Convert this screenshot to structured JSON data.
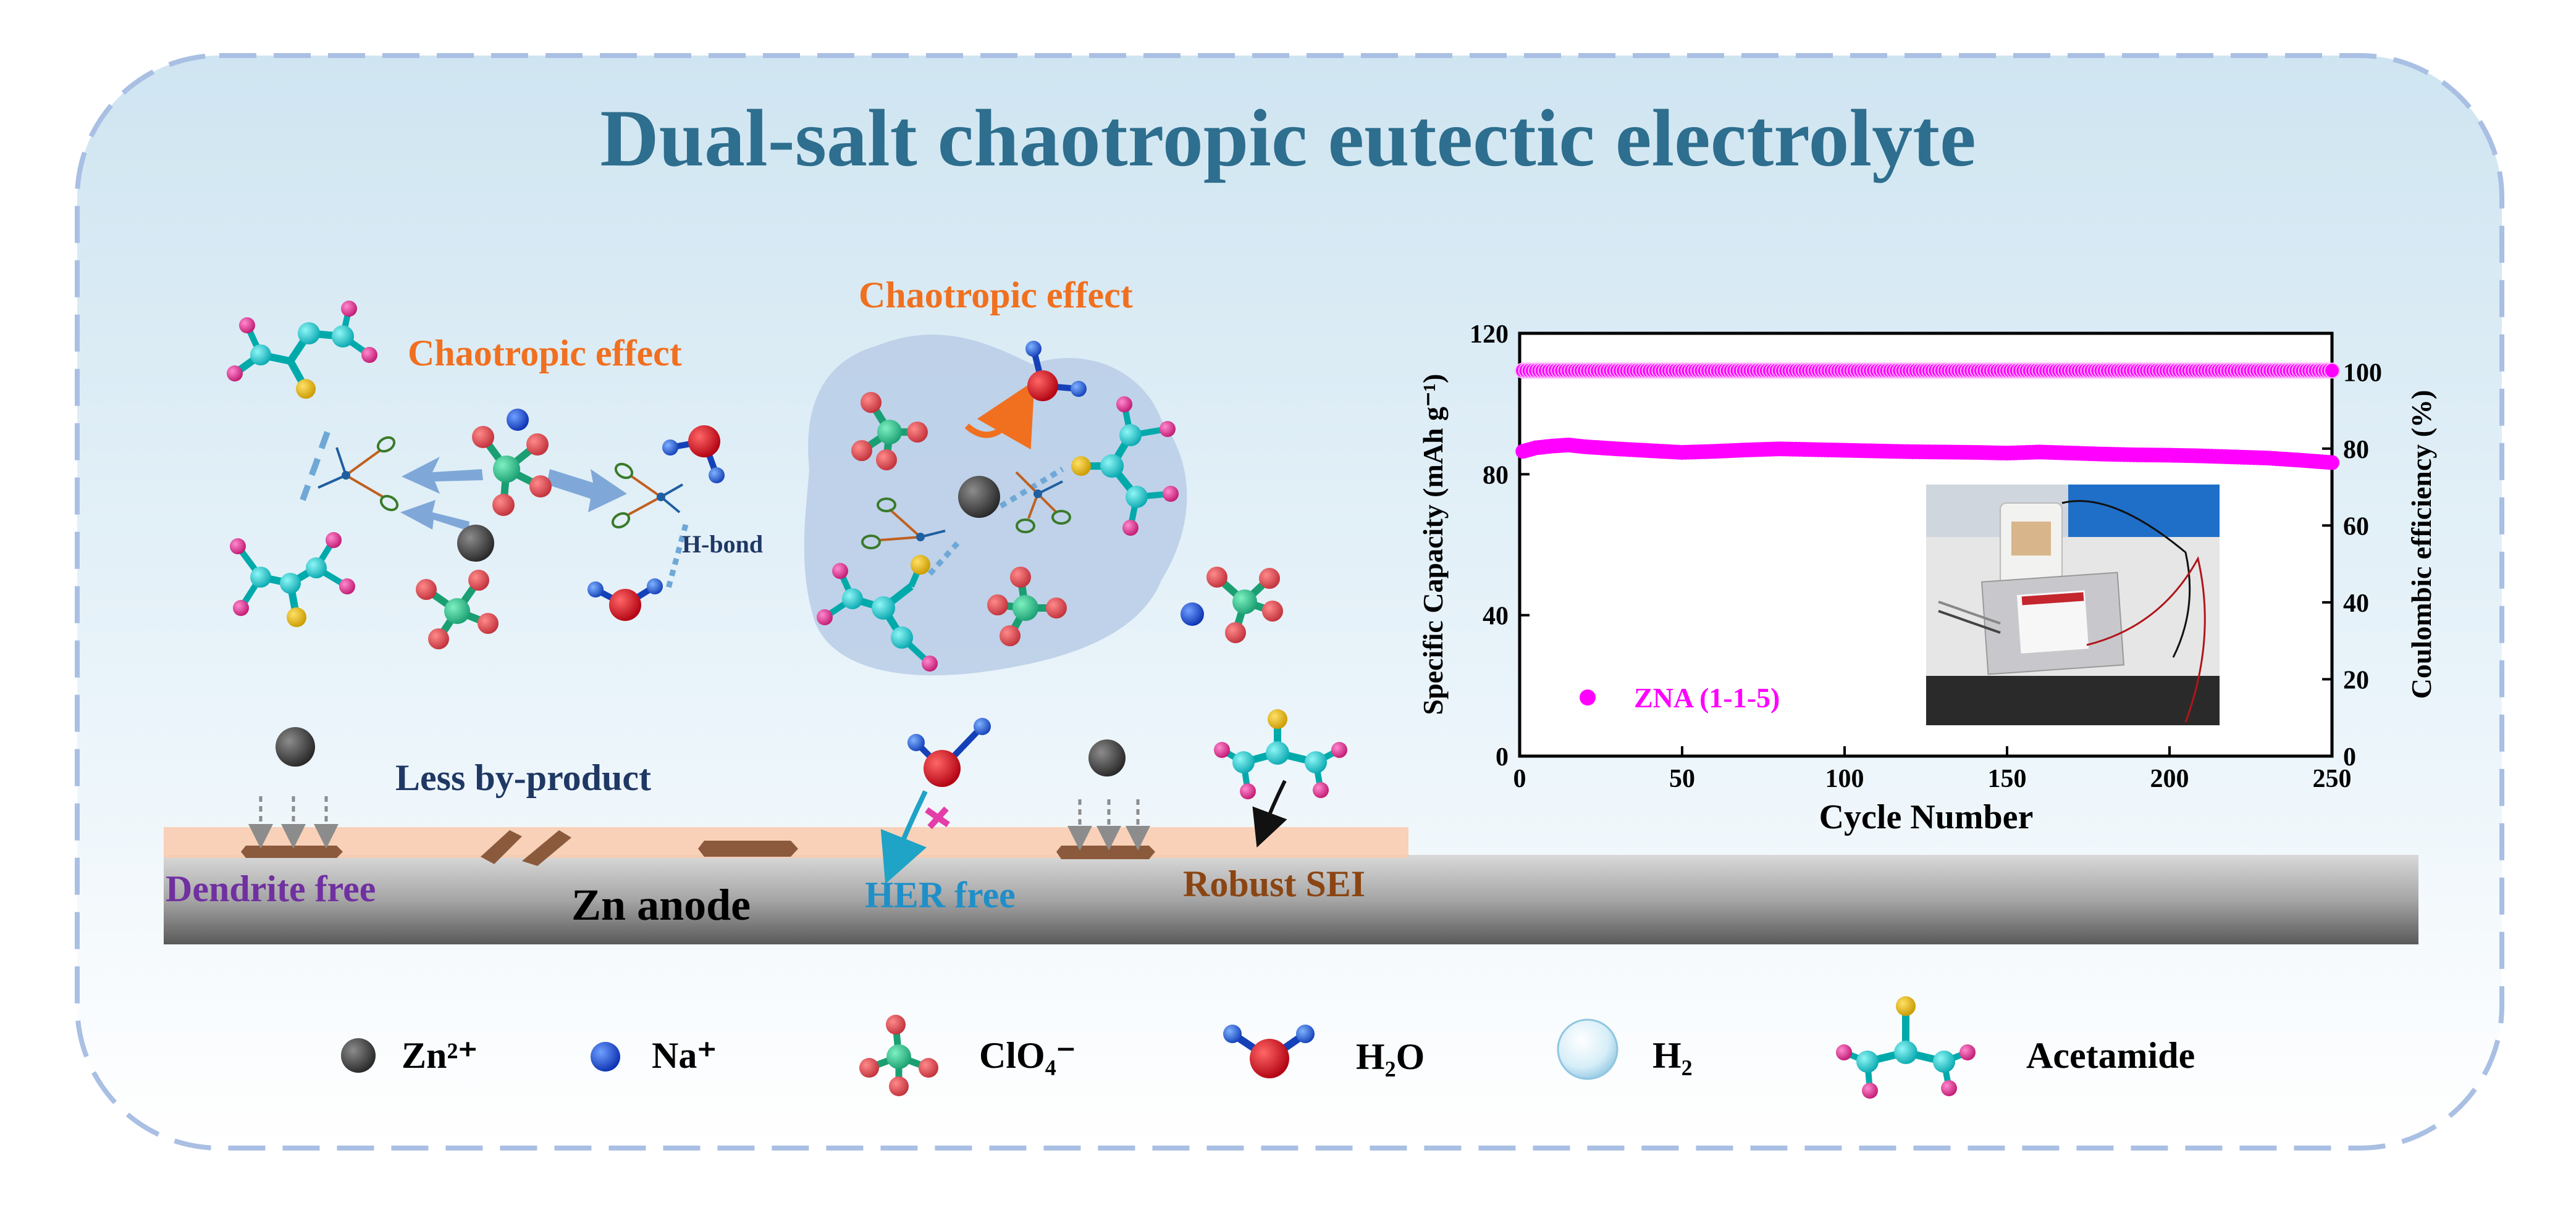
{
  "title": "Dual-salt chaotropic eutectic electrolyte",
  "labels": {
    "chaotropic_effect_left": "Chaotropic effect",
    "chaotropic_effect_center": "Chaotropic effect",
    "h_bond": "H-bond",
    "less_byproduct": "Less by-product",
    "dendrite_free": "Dendrite free",
    "zn_anode": "Zn anode",
    "her_free": "HER free",
    "robust_sei": "Robust SEI"
  },
  "legend": [
    {
      "id": "zn",
      "label": "Zn²⁺",
      "icon": "zinc-ion-icon"
    },
    {
      "id": "na",
      "label": "Na⁺",
      "icon": "sodium-ion-icon"
    },
    {
      "id": "clo4",
      "label": "ClO₄⁻",
      "icon": "perchlorate-icon"
    },
    {
      "id": "h2o",
      "label": "H₂O",
      "icon": "water-icon"
    },
    {
      "id": "h2",
      "label": "H₂",
      "icon": "hydrogen-bubble-icon"
    },
    {
      "id": "acetamide",
      "label": "Acetamide",
      "icon": "acetamide-icon"
    }
  ],
  "colors": {
    "title": "#2e6e8e",
    "chaotropic": "#f07020",
    "h_bond": "#1f3864",
    "less_byproduct": "#1f3864",
    "dendrite_free": "#7030a0",
    "her_free": "#1f8fc8",
    "robust_sei": "#8b4513",
    "series": "#ff00ff",
    "border": "#a9bfe3"
  },
  "chart_data": {
    "type": "scatter",
    "xlabel": "Cycle Number",
    "ylabel": "Specific Capacity (mAh g⁻¹)",
    "y2label": "Coulombic efficiency (%)",
    "xlim": [
      0,
      250
    ],
    "ylim": [
      0,
      120
    ],
    "y2lim": [
      0,
      110
    ],
    "xticks": [
      0,
      50,
      100,
      150,
      200,
      250
    ],
    "yticks": [
      0,
      40,
      80,
      120
    ],
    "y2ticks": [
      0,
      20,
      40,
      60,
      80,
      100
    ],
    "legend_placement": "lower-left",
    "grid": false,
    "series": [
      {
        "name": "ZNA (1-1-5)",
        "axis": "left",
        "x": [
          1,
          5,
          10,
          15,
          20,
          30,
          40,
          50,
          60,
          70,
          80,
          90,
          100,
          110,
          120,
          130,
          140,
          150,
          160,
          170,
          180,
          190,
          200,
          210,
          220,
          230,
          240,
          250
        ],
        "y": [
          86.5,
          87.5,
          88.0,
          88.3,
          87.8,
          87.2,
          86.7,
          86.2,
          86.5,
          86.9,
          87.2,
          87.0,
          86.8,
          86.6,
          86.4,
          86.3,
          86.2,
          86.0,
          86.3,
          86.0,
          85.7,
          85.5,
          85.4,
          85.2,
          84.9,
          84.6,
          84.0,
          83.3
        ]
      },
      {
        "axis": "right",
        "x": [
          1,
          250
        ],
        "y": [
          100.3,
          100.3
        ]
      }
    ]
  }
}
